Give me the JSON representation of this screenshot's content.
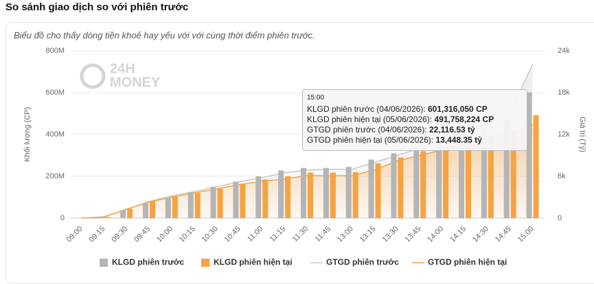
{
  "header": {
    "title": "So sánh giao dịch so với phiên trước"
  },
  "chart_data": {
    "type": "combo",
    "subtitle": "Biểu đồ cho thấy dòng tiền khoẻ hay yếu với với cùng thời điểm phiên trước.",
    "watermark": [
      "24H",
      "MONEY"
    ],
    "ylabel": "Khối lượng (CP)",
    "y2label": "Giá trị (Tỷ)",
    "categories": [
      "09:00",
      "09:15",
      "09:30",
      "09:45",
      "10:00",
      "10:15",
      "10:30",
      "10:45",
      "11:00",
      "11:15",
      "11:30",
      "11:45",
      "13:00",
      "13:15",
      "13:30",
      "13:45",
      "14:00",
      "14:15",
      "14:30",
      "14:45",
      "15:00"
    ],
    "ylim": [
      0,
      800000000
    ],
    "yticks": [
      0,
      {
        "value": 200000000,
        "label": "200M"
      },
      {
        "value": 400000000,
        "label": "400M"
      },
      {
        "value": 600000000,
        "label": "600M"
      },
      {
        "value": 800000000,
        "label": "800M"
      }
    ],
    "y2lim": [
      0,
      24000
    ],
    "y2ticks": [
      0,
      {
        "value": 6000,
        "label": "6k"
      },
      {
        "value": 12000,
        "label": "12k"
      },
      {
        "value": 18000,
        "label": "18k"
      },
      {
        "value": 24000,
        "label": "24k"
      }
    ],
    "series": [
      {
        "name": "KLGD phiên trước",
        "type": "bar",
        "color": "#b5b5b5",
        "values": [
          0,
          4000000,
          38000000,
          70000000,
          98000000,
          125000000,
          150000000,
          175000000,
          200000000,
          228000000,
          240000000,
          240000000,
          245000000,
          280000000,
          310000000,
          340000000,
          370000000,
          400000000,
          430000000,
          470000000,
          601316050
        ]
      },
      {
        "name": "KLGD phiên hiện tại",
        "type": "bar",
        "color": "#f7a340",
        "values": [
          0,
          5000000,
          45000000,
          80000000,
          105000000,
          120000000,
          140000000,
          165000000,
          185000000,
          200000000,
          218000000,
          218000000,
          220000000,
          262000000,
          290000000,
          320000000,
          345000000,
          370000000,
          395000000,
          420000000,
          491758224
        ]
      },
      {
        "name": "GTGD phiên trước",
        "type": "line",
        "axis": "y2",
        "color": "#c8c8c8",
        "values": [
          0,
          200,
          1200,
          2400,
          3200,
          3800,
          4500,
          5200,
          5800,
          6500,
          6900,
          7000,
          7000,
          8000,
          9000,
          10000,
          11200,
          12300,
          13500,
          15000,
          22116.53
        ]
      },
      {
        "name": "GTGD phiên hiện tại",
        "type": "line",
        "axis": "y2",
        "color": "#f7a340",
        "values": [
          0,
          150,
          1300,
          2300,
          3000,
          3600,
          4200,
          4800,
          5300,
          5600,
          6100,
          6100,
          6100,
          6900,
          8200,
          9000,
          9800,
          10600,
          11400,
          12200,
          13448.35
        ]
      }
    ],
    "tooltip": {
      "title": "15:00",
      "rows": [
        {
          "label": "KLGD phiên trước (04/06/2026): ",
          "value": "601,316,050 CP"
        },
        {
          "label": "KLGD phiên hiện tại (05/06/2026): ",
          "value": "491,758,224 CP"
        },
        {
          "label": "GTGD phiên trước (04/06/2026): ",
          "value": "22,116.53 tỷ"
        },
        {
          "label": "GTGD phiên hiện tại (05/06/2026): ",
          "value": "13,448.35 tỷ"
        }
      ]
    }
  }
}
